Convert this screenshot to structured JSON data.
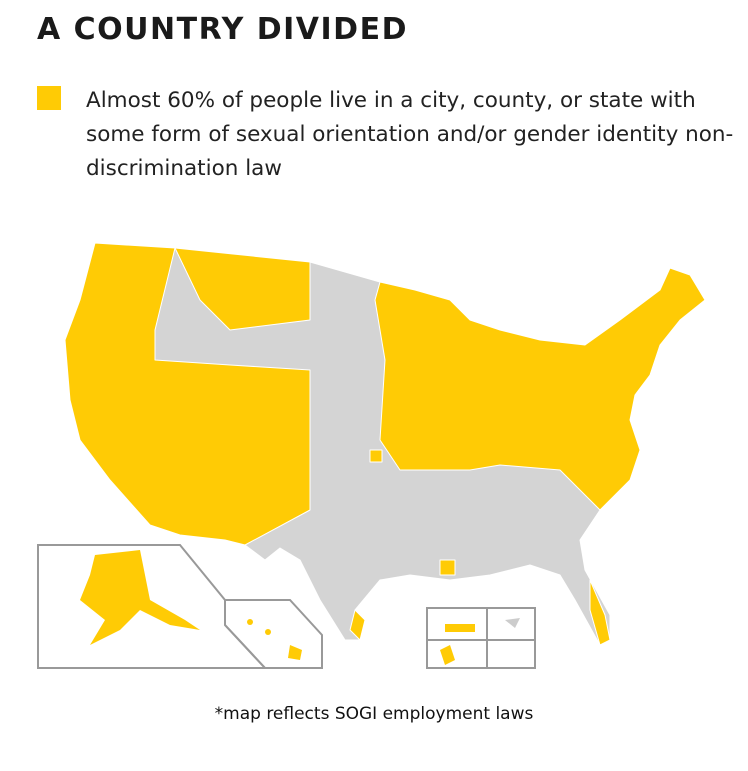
{
  "title": "A COUNTRY DIVIDED",
  "legend": {
    "text": "Almost 60% of people live in a city, county, or state with some form of sexual orientation and/or gender identity non-discrimination law"
  },
  "footnote": "*map reflects SOGI employment laws"
}
